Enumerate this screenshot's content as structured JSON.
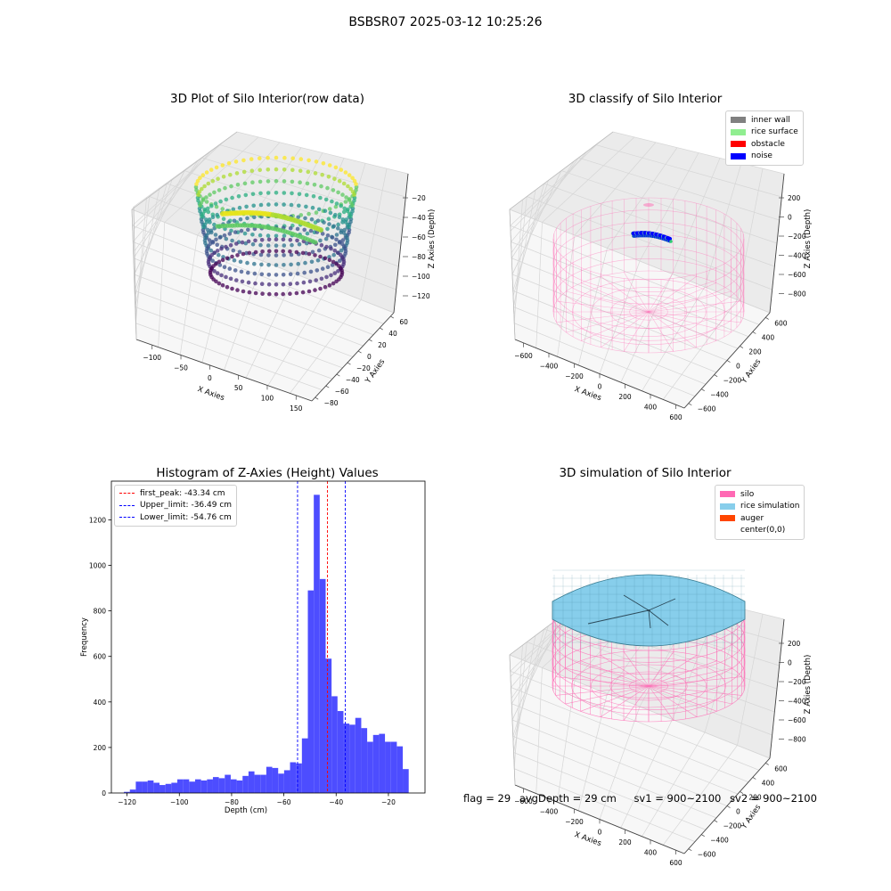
{
  "suptitle": "BSBSR07 2025-03-12 10:25:26",
  "status": {
    "flag": "flag = 29",
    "avg_depth": "avgDepth = 29 cm",
    "sv1": "sv1 = 900~2100",
    "sv2": "sv2 = 900~2100"
  },
  "colors": {
    "inner_wall": "#808080",
    "rice_surface": "#90ee90",
    "obstacle": "#ff0000",
    "noise": "#0000ff",
    "silo": "#ff69b4",
    "rice_simulation": "#87ceeb",
    "auger": "#ff4500",
    "hist_bar": "#4d4dff",
    "first_peak": "#ff0000",
    "limits": "#0000ff"
  },
  "chart_data": [
    {
      "type": "scatter",
      "subtype": "3d-scatter",
      "title": "3D Plot of Silo Interior(row data)",
      "xlabel": "X Axies",
      "ylabel": "Y Axies",
      "zlabel": "Z Axies (Depth)",
      "xticks": [
        "−100",
        "−50",
        "0",
        "50",
        "100",
        "150"
      ],
      "yticks": [
        "−80",
        "−60",
        "−40",
        "−20",
        "0",
        "20",
        "40",
        "60"
      ],
      "zticks": [
        "−20",
        "−40",
        "−60",
        "−80",
        "−100",
        "−120"
      ],
      "colormap": "viridis",
      "grid": true
    },
    {
      "type": "scatter",
      "subtype": "3d-scatter",
      "title": "3D classify of Silo Interior",
      "xlabel": "X Axies",
      "ylabel": "Y Axies",
      "zlabel": "Z Axies (Depth)",
      "xticks": [
        "−600",
        "−400",
        "−200",
        "0",
        "200",
        "400",
        "600"
      ],
      "yticks": [
        "−600",
        "−400",
        "−200",
        "0",
        "200",
        "400",
        "600"
      ],
      "zticks": [
        "200",
        "0",
        "−200",
        "−400",
        "−600",
        "−800"
      ],
      "legend": [
        "inner wall",
        "rice surface",
        "obstacle",
        "noise"
      ],
      "legend_position": "top-right",
      "grid": true
    },
    {
      "type": "bar",
      "subtype": "histogram",
      "title": "Histogram of Z-Axies (Height) Values",
      "xlabel": "Depth (cm)",
      "ylabel": "Frequency",
      "xlim": [
        -126,
        -6
      ],
      "ylim": [
        0,
        1370
      ],
      "xticks": [
        "−120",
        "−100",
        "−80",
        "−60",
        "−40",
        "−20"
      ],
      "yticks": [
        "0",
        "200",
        "400",
        "600",
        "800",
        "1000",
        "1200"
      ],
      "bin_width": 2.27,
      "bin_start": -121.2,
      "values": [
        5,
        15,
        50,
        50,
        55,
        45,
        35,
        40,
        45,
        60,
        60,
        50,
        60,
        55,
        60,
        70,
        65,
        80,
        60,
        55,
        75,
        95,
        80,
        80,
        115,
        110,
        85,
        100,
        135,
        130,
        240,
        890,
        1310,
        940,
        590,
        425,
        360,
        305,
        300,
        330,
        285,
        225,
        255,
        260,
        225,
        225,
        205,
        105
      ],
      "vlines": [
        {
          "label": "first_peak: -43.34 cm",
          "x": -43.34,
          "color": "#ff0000"
        },
        {
          "label": "Upper_limit: -36.49 cm",
          "x": -36.49,
          "color": "#0000ff"
        },
        {
          "label": "Lower_limit: -54.76 cm",
          "x": -54.76,
          "color": "#0000ff"
        }
      ],
      "legend_position": "top-left",
      "grid": false
    },
    {
      "type": "scatter",
      "subtype": "3d-surface",
      "title": "3D simulation of Silo Interior",
      "xlabel": "X Axies",
      "ylabel": "Y Axies",
      "zlabel": "Z Axies (Depth)",
      "xticks": [
        "−600",
        "−400",
        "−200",
        "0",
        "200",
        "400",
        "600"
      ],
      "yticks": [
        "−600",
        "−400",
        "−200",
        "0",
        "200",
        "400",
        "600"
      ],
      "zticks": [
        "200",
        "0",
        "−200",
        "−400",
        "−600",
        "−800"
      ],
      "legend": [
        "silo",
        "rice simulation",
        "auger",
        "center(0,0)"
      ],
      "legend_position": "top-right",
      "grid": true
    }
  ]
}
